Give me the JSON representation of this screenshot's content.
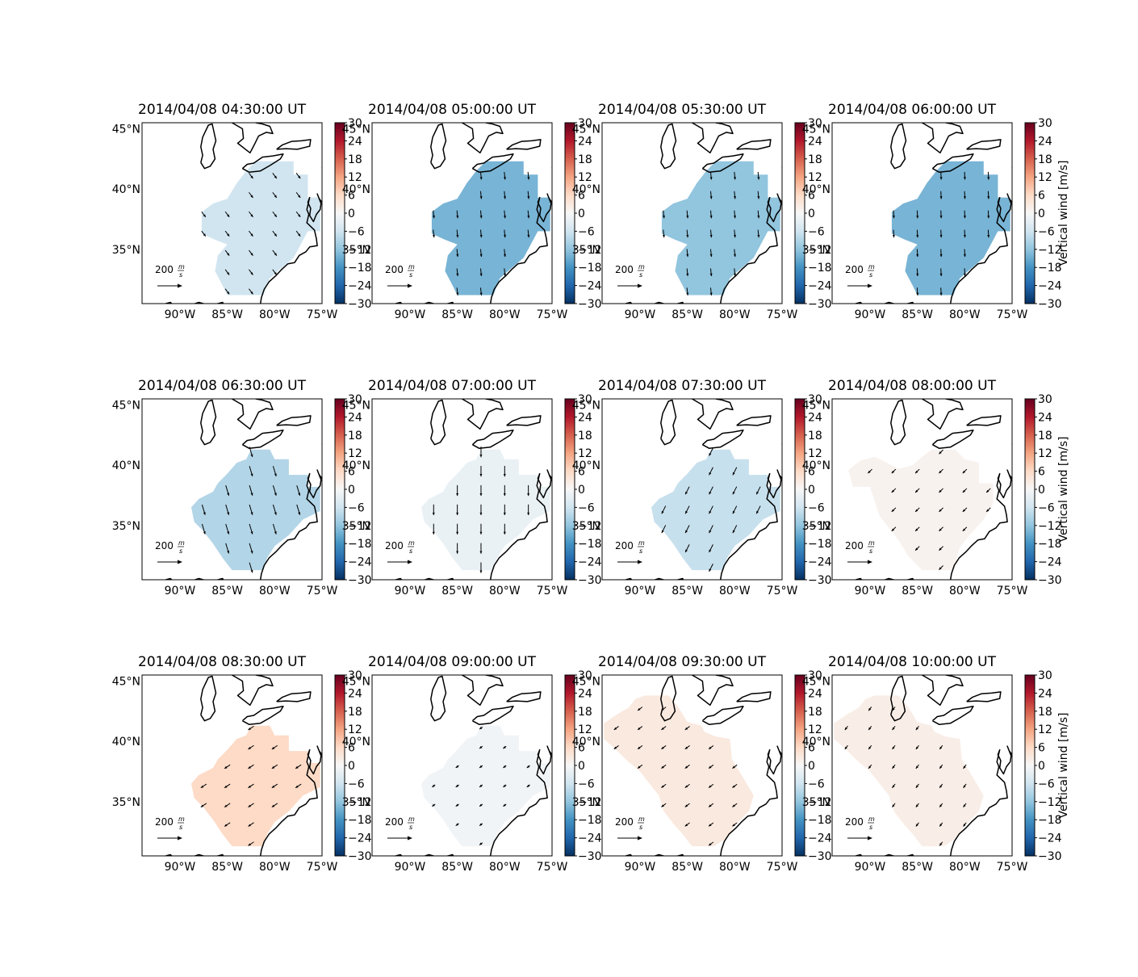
{
  "colors": {
    "cmap": [
      "#053061",
      "#2166ac",
      "#4393c3",
      "#92c5de",
      "#d1e5f0",
      "#f7f7f7",
      "#fddbc7",
      "#f4a582",
      "#d6604d",
      "#b2182b",
      "#67001f"
    ],
    "coast": "#000000"
  },
  "axes": {
    "lon_ticks": [
      "90°W",
      "85°W",
      "80°W",
      "75°W"
    ],
    "lon_values": [
      -90,
      -85,
      -80,
      -75
    ],
    "lat_ticks": [
      "45°N",
      "40°N",
      "35°N"
    ],
    "lat_values": [
      45,
      40,
      35
    ],
    "lon_range": [
      -94,
      -75
    ],
    "lat_range": [
      30.5,
      45.5
    ]
  },
  "colorbar": {
    "ticks": [
      "30",
      "24",
      "18",
      "12",
      "6",
      "0",
      "−6",
      "−12",
      "−18",
      "−24",
      "−30"
    ],
    "range": [
      -30,
      30
    ],
    "label": "Vertical wind [m/s]"
  },
  "reference_arrow": {
    "value": 200,
    "label_value": "200",
    "label_unit_num": "m",
    "label_unit_den": "s"
  },
  "panels": [
    {
      "title": "2014/04/08 04:30:00 UT",
      "vertical_wind": -6,
      "region": "A",
      "arrow_dir": [
        0.45,
        0.6
      ],
      "arrow_len": 0.7
    },
    {
      "title": "2014/04/08 05:00:00 UT",
      "vertical_wind": -14,
      "region": "A",
      "arrow_dir": [
        0.1,
        1
      ],
      "arrow_len": 0.8
    },
    {
      "title": "2014/04/08 05:30:00 UT",
      "vertical_wind": -12,
      "region": "A",
      "arrow_dir": [
        0.1,
        1
      ],
      "arrow_len": 0.8
    },
    {
      "title": "2014/04/08 06:00:00 UT",
      "vertical_wind": -14,
      "region": "A",
      "arrow_dir": [
        0.05,
        1
      ],
      "arrow_len": 0.8
    },
    {
      "title": "2014/04/08 06:30:00 UT",
      "vertical_wind": -9,
      "region": "B",
      "arrow_dir": [
        0.3,
        1
      ],
      "arrow_len": 1.1
    },
    {
      "title": "2014/04/08 07:00:00 UT",
      "vertical_wind": -2,
      "region": "B",
      "arrow_dir": [
        0,
        1
      ],
      "arrow_len": 1.1
    },
    {
      "title": "2014/04/08 07:30:00 UT",
      "vertical_wind": -7,
      "region": "B",
      "arrow_dir": [
        -0.5,
        1
      ],
      "arrow_len": 0.9
    },
    {
      "title": "2014/04/08 08:00:00 UT",
      "vertical_wind": 1,
      "region": "C",
      "arrow_dir": [
        -0.7,
        0.7
      ],
      "arrow_len": 0.6
    },
    {
      "title": "2014/04/08 08:30:00 UT",
      "vertical_wind": 6,
      "region": "B",
      "arrow_dir": [
        -0.9,
        0.6
      ],
      "arrow_len": 0.7
    },
    {
      "title": "2014/04/08 09:00:00 UT",
      "vertical_wind": -1,
      "region": "B",
      "arrow_dir": [
        -0.8,
        0.6
      ],
      "arrow_len": 0.4
    },
    {
      "title": "2014/04/08 09:30:00 UT",
      "vertical_wind": 3,
      "region": "D",
      "arrow_dir": [
        -0.8,
        0.6
      ],
      "arrow_len": 0.6
    },
    {
      "title": "2014/04/08 10:00:00 UT",
      "vertical_wind": 2,
      "region": "D",
      "arrow_dir": [
        -0.6,
        0.8
      ],
      "arrow_len": 0.5
    }
  ]
}
